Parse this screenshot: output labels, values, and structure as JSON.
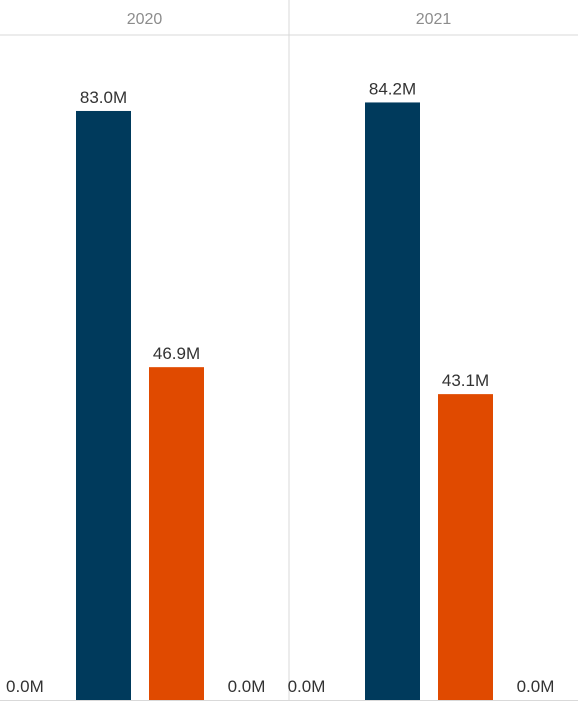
{
  "chart_data": {
    "type": "bar",
    "title": "",
    "xlabel": "",
    "ylabel": "",
    "ylim": [
      0,
      93
    ],
    "grid": false,
    "legend": "none",
    "categories": [
      "2020",
      "2021"
    ],
    "series": [
      {
        "color": "#003a5c",
        "values": [
          0.0,
          0.0
        ],
        "labels": [
          "0.0M",
          "0.0M"
        ]
      },
      {
        "color": "#003a5c",
        "values": [
          83.0,
          84.2
        ],
        "labels": [
          "83.0M",
          "84.2M"
        ]
      },
      {
        "color": "#e04a00",
        "values": [
          46.9,
          43.1
        ],
        "labels": [
          "46.9M",
          "43.1M"
        ]
      },
      {
        "color": "#003a5c",
        "values": [
          0.0,
          0.0
        ],
        "labels": [
          "0.0M",
          "0.0M"
        ]
      }
    ]
  }
}
